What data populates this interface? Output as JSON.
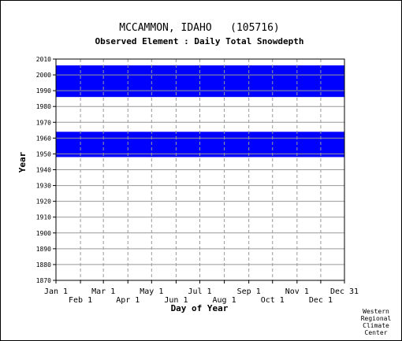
{
  "chart_data": {
    "type": "heatmap",
    "title": "MCCAMMON, IDAHO   (105716)",
    "subtitle": "Observed Element : Daily Total Snowdepth",
    "xlabel": "Day of Year",
    "ylabel": "Year",
    "x_range": [
      1,
      366
    ],
    "ylim": [
      1870,
      2010
    ],
    "y_ticks": [
      1870,
      1880,
      1890,
      1900,
      1910,
      1920,
      1930,
      1940,
      1950,
      1960,
      1970,
      1980,
      1990,
      2000,
      2010
    ],
    "x_ticks_top": [
      {
        "label": "Jan 1",
        "day": 1
      },
      {
        "label": "Mar 1",
        "day": 61
      },
      {
        "label": "May 1",
        "day": 122
      },
      {
        "label": "Jul 1",
        "day": 183
      },
      {
        "label": "Sep 1",
        "day": 245
      },
      {
        "label": "Nov 1",
        "day": 306
      },
      {
        "label": "Dec 31",
        "day": 366
      }
    ],
    "x_ticks_bottom": [
      {
        "label": "Feb 1",
        "day": 32
      },
      {
        "label": "Apr 1",
        "day": 92
      },
      {
        "label": "Jun 1",
        "day": 153
      },
      {
        "label": "Aug 1",
        "day": 214
      },
      {
        "label": "Oct 1",
        "day": 275
      },
      {
        "label": "Dec 1",
        "day": 336
      }
    ],
    "grid": true,
    "color": "#0000ff",
    "observed_periods": [
      {
        "start_day": 1,
        "end_day": 366,
        "year_start": 1948,
        "year_end": 1964
      },
      {
        "start_day": 1,
        "end_day": 366,
        "year_start": 1986,
        "year_end": 2006
      }
    ]
  },
  "credit": [
    "Western",
    "Regional",
    "Climate",
    "Center"
  ]
}
